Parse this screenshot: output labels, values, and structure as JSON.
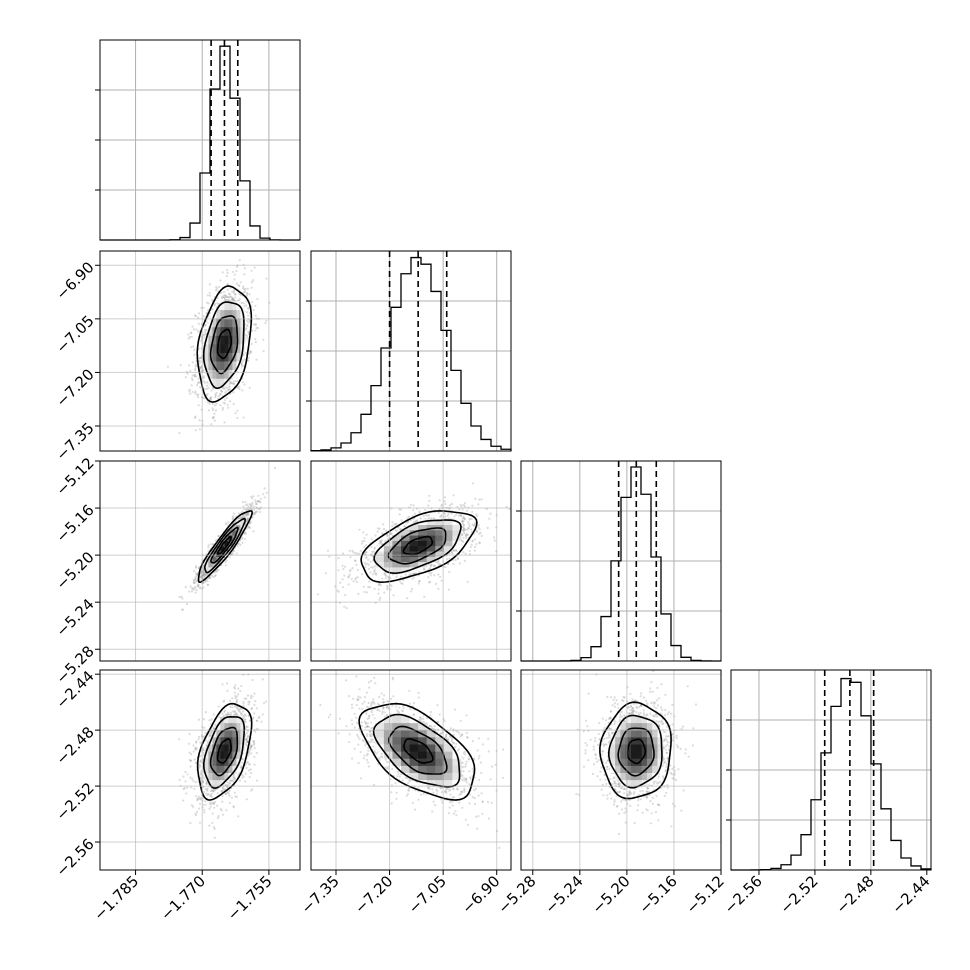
{
  "chart_data": {
    "type": "corner",
    "title": "",
    "parameters": [
      {
        "label": "",
        "center": -1.765,
        "sigma": 0.003,
        "quantiles": [
          -1.768,
          -1.765,
          -1.762
        ],
        "range": [
          -1.793,
          -1.748
        ],
        "ticks": [
          -1.785,
          -1.77,
          -1.755
        ],
        "tick_labels": [
          "−1.785",
          "−1.770",
          "−1.755"
        ]
      },
      {
        "label": "",
        "center": -7.12,
        "sigma": 0.08,
        "quantiles": [
          -7.2,
          -7.12,
          -7.04
        ],
        "range": [
          -7.42,
          -6.86
        ],
        "ticks": [
          -7.35,
          -7.2,
          -7.05,
          -6.9
        ],
        "tick_labels": [
          "−7.35",
          "−7.20",
          "−7.05",
          "−6.90"
        ]
      },
      {
        "label": "",
        "center": -5.192,
        "sigma": 0.015,
        "quantiles": [
          -5.207,
          -5.192,
          -5.175
        ],
        "range": [
          -5.29,
          -5.12
        ],
        "ticks": [
          -5.28,
          -5.24,
          -5.2,
          -5.16,
          -5.12
        ],
        "tick_labels": [
          "−5.28",
          "−5.24",
          "−5.20",
          "−5.16",
          "−5.12"
        ]
      },
      {
        "label": "",
        "center": -2.495,
        "sigma": 0.017,
        "quantiles": [
          -2.513,
          -2.495,
          -2.478
        ],
        "range": [
          -2.58,
          -2.437
        ],
        "ticks": [
          -2.56,
          -2.52,
          -2.48,
          -2.44
        ],
        "tick_labels": [
          "−2.56",
          "−2.52",
          "−2.48",
          "−2.44"
        ]
      }
    ],
    "correlations": {
      "1-0": 0.3,
      "2-0": 0.92,
      "2-1": 0.55,
      "3-0": 0.45,
      "3-1": -0.55,
      "3-2": 0.05
    },
    "contour_levels_sigma": [
      0.5,
      1.0,
      1.5,
      2.0
    ],
    "histogram_bins": 20,
    "grid": true,
    "colors": {
      "points": "#9a9a9a",
      "lines": "#000000",
      "density_max": "#000000"
    }
  }
}
